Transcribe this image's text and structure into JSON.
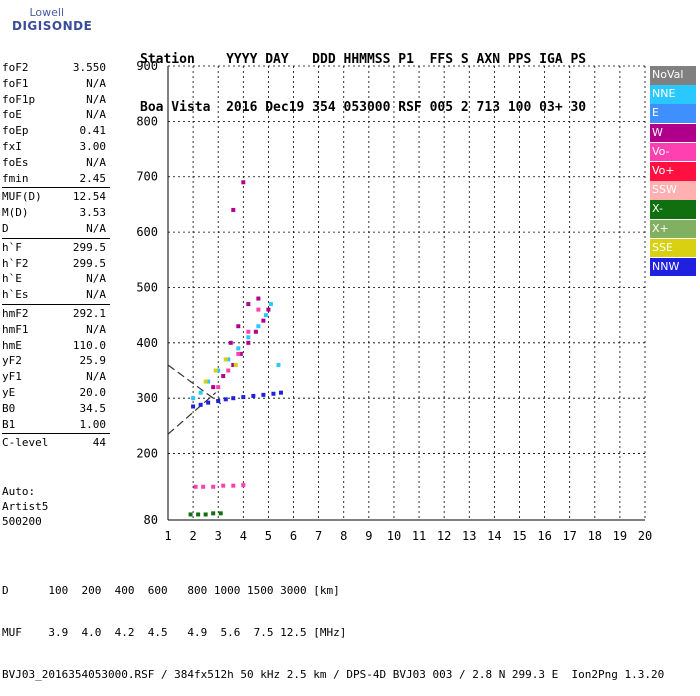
{
  "logo": {
    "line1": "Lowell",
    "line2": "DIGISONDE"
  },
  "header": {
    "row1": "Station    YYYY DAY   DDD HHMMSS P1  FFS S AXN PPS IGA PS",
    "row2": "Boa Vista  2016 Dec19 354 053000 RSF 005 2 713 100 03+ 30"
  },
  "params": {
    "group1": [
      {
        "name": "foF2",
        "value": "3.550"
      },
      {
        "name": "foF1",
        "value": "N/A"
      },
      {
        "name": "foF1p",
        "value": "N/A"
      },
      {
        "name": "foE",
        "value": "N/A"
      },
      {
        "name": "foEp",
        "value": "0.41"
      },
      {
        "name": "fxI",
        "value": "3.00"
      },
      {
        "name": "foEs",
        "value": "N/A"
      },
      {
        "name": "fmin",
        "value": "2.45"
      }
    ],
    "group2": [
      {
        "name": "MUF(D)",
        "value": "12.54"
      },
      {
        "name": "M(D)",
        "value": "3.53"
      },
      {
        "name": "D",
        "value": "N/A"
      }
    ],
    "group3": [
      {
        "name": "h`F",
        "value": "299.5"
      },
      {
        "name": "h`F2",
        "value": "299.5"
      },
      {
        "name": "h`E",
        "value": "N/A"
      },
      {
        "name": "h`Es",
        "value": "N/A"
      }
    ],
    "group4": [
      {
        "name": "hmF2",
        "value": "292.1"
      },
      {
        "name": "hmF1",
        "value": "N/A"
      },
      {
        "name": "hmE",
        "value": "110.0"
      },
      {
        "name": "yF2",
        "value": "25.9"
      },
      {
        "name": "yF1",
        "value": "N/A"
      },
      {
        "name": "yE",
        "value": "20.0"
      },
      {
        "name": "B0",
        "value": "34.5"
      },
      {
        "name": "B1",
        "value": "1.00"
      }
    ],
    "group5": [
      {
        "name": "C-level",
        "value": "44"
      }
    ]
  },
  "auto": {
    "line1": "Auto:",
    "line2": "Artist5",
    "line3": "500200"
  },
  "legend": [
    {
      "label": "NoVal",
      "color": "#808080"
    },
    {
      "label": "NNE",
      "color": "#29c8ff"
    },
    {
      "label": "E",
      "color": "#3f8fff"
    },
    {
      "label": "W",
      "color": "#b0008a"
    },
    {
      "label": "Vo-",
      "color": "#ff40b0"
    },
    {
      "label": "Vo+",
      "color": "#ff1040"
    },
    {
      "label": "SSW",
      "color": "#ffb0b0"
    },
    {
      "label": "X-",
      "color": "#107010"
    },
    {
      "label": "X+",
      "color": "#80b060"
    },
    {
      "label": "SSE",
      "color": "#d8d010"
    },
    {
      "label": "NNW",
      "color": "#2020e0"
    }
  ],
  "footer": {
    "row1": "D      100  200  400  600   800 1000 1500 3000 [km]",
    "row2": "MUF    3.9  4.0  4.2  4.5   4.9  5.6  7.5 12.5 [MHz]",
    "row3": "BVJ03_2016354053000.RSF / 384fx512h 50 kHz 2.5 km / DPS-4D BVJ03 003 / 2.8 N 299.3 E  Ion2Png 1.3.20"
  },
  "chart_data": {
    "type": "scatter",
    "xlim": [
      1,
      20
    ],
    "ylim": [
      80,
      900
    ],
    "xticks": [
      1,
      2,
      3,
      4,
      5,
      6,
      7,
      8,
      9,
      10,
      11,
      12,
      13,
      14,
      15,
      16,
      17,
      18,
      19,
      20
    ],
    "yticks": [
      80,
      200,
      300,
      400,
      500,
      600,
      700,
      800,
      900
    ],
    "grid": true,
    "legend_position": "right",
    "series": [
      {
        "name": "NNW",
        "points": [
          [
            2.0,
            285
          ],
          [
            2.3,
            288
          ],
          [
            2.6,
            292
          ],
          [
            3.0,
            295
          ],
          [
            3.3,
            298
          ],
          [
            3.6,
            300
          ],
          [
            4.0,
            302
          ],
          [
            4.4,
            304
          ],
          [
            4.8,
            306
          ],
          [
            5.2,
            308
          ],
          [
            5.5,
            310
          ]
        ]
      },
      {
        "name": "W",
        "points": [
          [
            2.8,
            320
          ],
          [
            3.2,
            340
          ],
          [
            3.6,
            360
          ],
          [
            3.9,
            380
          ],
          [
            4.2,
            400
          ],
          [
            4.5,
            420
          ],
          [
            4.8,
            440
          ],
          [
            5.0,
            460
          ],
          [
            4.6,
            480
          ],
          [
            4.2,
            470
          ],
          [
            3.8,
            430
          ],
          [
            3.5,
            400
          ],
          [
            4.0,
            690
          ],
          [
            3.6,
            640
          ]
        ]
      },
      {
        "name": "NNE",
        "points": [
          [
            2.0,
            300
          ],
          [
            2.3,
            310
          ],
          [
            2.6,
            330
          ],
          [
            3.0,
            350
          ],
          [
            3.4,
            370
          ],
          [
            3.8,
            390
          ],
          [
            4.2,
            410
          ],
          [
            4.6,
            430
          ],
          [
            4.9,
            450
          ],
          [
            5.1,
            470
          ],
          [
            5.4,
            360
          ]
        ]
      },
      {
        "name": "Vo-",
        "points": [
          [
            2.1,
            140
          ],
          [
            2.4,
            140
          ],
          [
            2.8,
            140
          ],
          [
            3.2,
            142
          ],
          [
            3.6,
            142
          ],
          [
            4.0,
            143
          ],
          [
            3.0,
            320
          ],
          [
            3.4,
            350
          ],
          [
            3.8,
            380
          ],
          [
            4.2,
            420
          ],
          [
            4.6,
            460
          ]
        ]
      },
      {
        "name": "SSE",
        "points": [
          [
            2.5,
            330
          ],
          [
            2.9,
            350
          ],
          [
            3.3,
            370
          ],
          [
            3.7,
            360
          ]
        ]
      },
      {
        "name": "X-",
        "points": [
          [
            1.9,
            90
          ],
          [
            2.2,
            90
          ],
          [
            2.5,
            90
          ],
          [
            2.8,
            92
          ],
          [
            3.1,
            92
          ]
        ]
      }
    ],
    "annotation_lines": [
      {
        "points": [
          [
            1.0,
            360
          ],
          [
            3.1,
            290
          ]
        ]
      },
      {
        "points": [
          [
            1.0,
            235
          ],
          [
            2.9,
            310
          ]
        ]
      }
    ]
  }
}
